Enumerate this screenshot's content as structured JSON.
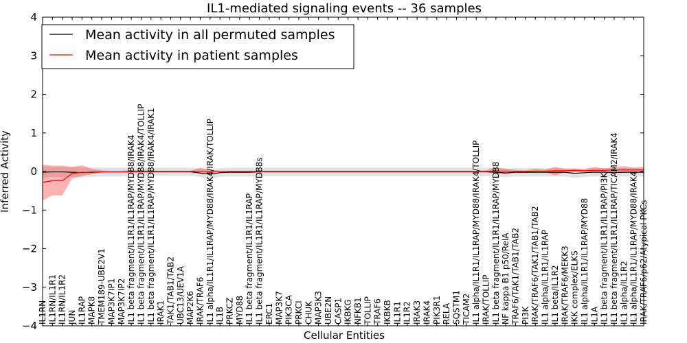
{
  "chart_data": {
    "type": "line",
    "title": "IL1-mediated signaling events -- 36 samples",
    "xlabel": "Cellular Entities",
    "ylabel": "Inferred Activity",
    "ylim": [
      -4,
      4
    ],
    "yticks": [
      -4,
      -3,
      -2,
      -1,
      0,
      1,
      2,
      3,
      4
    ],
    "ytick_labels": [
      "−4",
      "−3",
      "−2",
      "−1",
      "0",
      "1",
      "2",
      "3",
      "4"
    ],
    "legend_position": "top-left",
    "legend": [
      {
        "label": "Mean activity in all permuted samples",
        "color": "#000000"
      },
      {
        "label": "Mean activity in patient samples",
        "color": "#ff0000"
      }
    ],
    "categories": [
      "IL1RN",
      "IL1RN/IL1R1",
      "IL1RN/IL1R2",
      "JUN",
      "IL1RAP",
      "MAPK8",
      "TMEM189-UBE2V1",
      "MAP3K7IP1",
      "MAP3K7IP2",
      "IL1 beta fragment/IL1R1/IL1RAP/MYD88/IRAK4",
      "IL1 beta fragment/IL1R1/IL1RAP/MYD88/IRAK4/TOLLIP",
      "IL1 beta fragment/IL1R1/IL1RAP/MYD88/IRAK4/IRAK1",
      "IRAK1",
      "TAK1/TAB1/TAB2",
      "UBC13/UEV1A",
      "MAP2K6",
      "IRAK/TRAF6",
      "IL1 alpha/IL1R1/IL1RAP/MYD88/IRAK4/IRAK/TOLLIP",
      "IL1B",
      "PRKCZ",
      "MYD88",
      "IL1 beta fragment/IL1R1/IL1RAP",
      "IL1 beta fragment/IL1R1/IL1RAP/MYD88s",
      "ERC1",
      "MAP3K7",
      "PIK3CA",
      "PRKCI",
      "CHUK",
      "MAP3K3",
      "UBE2N",
      "CASP1",
      "IKBKG",
      "NFKB1",
      "TOLLIP",
      "TRAF6",
      "IKBKB",
      "IL1R1",
      "IL1R2",
      "IRAK3",
      "IRAK4",
      "PIK3R1",
      "RELA",
      "SQSTM1",
      "TICAM2",
      "IL1 alpha/IL1R1/IL1RAP/MYD88/IRAK4/TOLLIP",
      "IRAK/TOLLIP",
      "IL1 beta fragment/IL1R1/IL1RAP/MYD88",
      "NF kappa B1 p50/RelA",
      "TRAF6/TAK1/TAB1/TAB2",
      "PI3K",
      "IRAK/TRAF6/TAK1/TAB1/TAB2",
      "IL1 alpha/IL1R1/IL1RAP",
      "IL1 beta/IL1R2",
      "IRAK/TRAF6/MEKK3",
      "IKK complex/ELKS",
      "IL1 alpha/IL1R1/IL1RAP/MYD88",
      "IL1A",
      "IL1 beta fragment/IL1R1/IL1RAP/PI3K",
      "IL1 beta fragment/IL1R1/IL1RAP/TICAM2/IRAK4",
      "IL1 alpha/IL1R2",
      "IL1 alpha/IL1R1/IL1RAP/MYD88/IRAK4",
      "IRAK/TRAF6/p62/Atypical PKCs"
    ],
    "series": [
      {
        "name": "Mean activity in all permuted samples",
        "color": "#000000",
        "values": [
          -0.02,
          -0.01,
          -0.01,
          -0.02,
          -0.03,
          -0.02,
          -0.01,
          -0.01,
          -0.01,
          -0.01,
          -0.01,
          -0.01,
          -0.01,
          -0.01,
          -0.01,
          -0.01,
          -0.04,
          -0.07,
          -0.03,
          -0.02,
          -0.02,
          -0.02,
          -0.01,
          -0.01,
          -0.01,
          -0.01,
          -0.01,
          -0.01,
          -0.01,
          -0.01,
          -0.01,
          -0.01,
          -0.01,
          -0.01,
          -0.01,
          -0.01,
          -0.01,
          -0.01,
          -0.01,
          -0.01,
          -0.01,
          -0.01,
          -0.01,
          -0.01,
          -0.01,
          -0.01,
          -0.02,
          -0.04,
          -0.02,
          -0.02,
          -0.02,
          -0.02,
          -0.02,
          -0.02,
          -0.05,
          -0.03,
          -0.02,
          -0.02,
          -0.03,
          -0.02,
          -0.02,
          -0.02
        ],
        "lower": [
          -0.16,
          -0.14,
          -0.14,
          -0.15,
          -0.15,
          -0.14,
          -0.13,
          -0.13,
          -0.13,
          -0.12,
          -0.12,
          -0.12,
          -0.11,
          -0.11,
          -0.11,
          -0.11,
          -0.14,
          -0.2,
          -0.14,
          -0.13,
          -0.13,
          -0.13,
          -0.12,
          -0.12,
          -0.12,
          -0.12,
          -0.12,
          -0.12,
          -0.12,
          -0.12,
          -0.12,
          -0.12,
          -0.12,
          -0.12,
          -0.12,
          -0.12,
          -0.12,
          -0.12,
          -0.12,
          -0.12,
          -0.12,
          -0.12,
          -0.12,
          -0.12,
          -0.12,
          -0.12,
          -0.13,
          -0.15,
          -0.13,
          -0.13,
          -0.13,
          -0.13,
          -0.13,
          -0.13,
          -0.17,
          -0.14,
          -0.13,
          -0.13,
          -0.14,
          -0.13,
          -0.13,
          -0.13
        ],
        "upper": [
          0.12,
          0.12,
          0.12,
          0.11,
          0.11,
          0.11,
          0.1,
          0.1,
          0.1,
          0.1,
          0.1,
          0.1,
          0.1,
          0.1,
          0.1,
          0.1,
          0.08,
          0.06,
          0.09,
          0.1,
          0.1,
          0.1,
          0.1,
          0.1,
          0.1,
          0.1,
          0.1,
          0.1,
          0.1,
          0.1,
          0.1,
          0.1,
          0.1,
          0.1,
          0.1,
          0.1,
          0.1,
          0.1,
          0.1,
          0.1,
          0.1,
          0.1,
          0.1,
          0.1,
          0.1,
          0.1,
          0.09,
          0.07,
          0.09,
          0.09,
          0.09,
          0.09,
          0.09,
          0.09,
          0.07,
          0.09,
          0.09,
          0.09,
          0.08,
          0.09,
          0.09,
          0.09
        ]
      },
      {
        "name": "Mean activity in patient samples",
        "color": "#ff0000",
        "values": [
          -0.28,
          -0.24,
          -0.24,
          -0.05,
          -0.02,
          -0.03,
          -0.01,
          -0.01,
          -0.01,
          0.0,
          0.0,
          0.0,
          0.0,
          0.0,
          0.0,
          0.0,
          0.01,
          -0.01,
          0.0,
          0.0,
          0.0,
          0.0,
          0.0,
          0.0,
          0.0,
          0.0,
          0.0,
          0.0,
          0.0,
          0.0,
          0.0,
          0.0,
          0.0,
          0.0,
          0.0,
          0.0,
          0.0,
          0.0,
          0.0,
          0.0,
          0.0,
          0.0,
          0.0,
          0.0,
          0.0,
          0.0,
          0.01,
          0.01,
          0.0,
          0.0,
          0.01,
          0.01,
          0.02,
          0.02,
          0.03,
          0.02,
          0.03,
          0.03,
          0.04,
          0.04,
          0.04,
          0.04
        ],
        "lower": [
          -0.75,
          -0.62,
          -0.62,
          -0.18,
          -0.12,
          -0.07,
          -0.03,
          -0.02,
          -0.02,
          -0.02,
          -0.02,
          -0.02,
          -0.01,
          -0.01,
          -0.01,
          -0.01,
          -0.03,
          -0.04,
          -0.01,
          -0.01,
          -0.01,
          -0.01,
          -0.01,
          -0.01,
          -0.01,
          -0.01,
          -0.01,
          -0.01,
          -0.01,
          -0.01,
          -0.01,
          -0.01,
          -0.01,
          -0.01,
          -0.01,
          -0.01,
          -0.01,
          -0.01,
          -0.01,
          -0.01,
          -0.01,
          -0.01,
          -0.01,
          -0.01,
          -0.01,
          -0.01,
          -0.05,
          -0.06,
          -0.02,
          -0.01,
          -0.03,
          -0.02,
          -0.1,
          -0.02,
          -0.03,
          -0.01,
          -0.02,
          -0.01,
          -0.02,
          -0.03,
          -0.02,
          -0.02
        ],
        "upper": [
          0.18,
          0.15,
          0.15,
          0.12,
          0.16,
          0.07,
          0.03,
          0.02,
          0.02,
          0.03,
          0.03,
          0.03,
          0.02,
          0.02,
          0.02,
          0.02,
          0.1,
          0.05,
          0.02,
          0.02,
          0.02,
          0.02,
          0.02,
          0.02,
          0.02,
          0.02,
          0.02,
          0.02,
          0.02,
          0.02,
          0.02,
          0.02,
          0.02,
          0.02,
          0.02,
          0.02,
          0.02,
          0.02,
          0.02,
          0.02,
          0.02,
          0.02,
          0.02,
          0.02,
          0.02,
          0.03,
          0.1,
          0.08,
          0.04,
          0.03,
          0.07,
          0.05,
          0.12,
          0.07,
          0.08,
          0.05,
          0.12,
          0.08,
          0.12,
          0.14,
          0.1,
          0.12
        ]
      }
    ]
  }
}
